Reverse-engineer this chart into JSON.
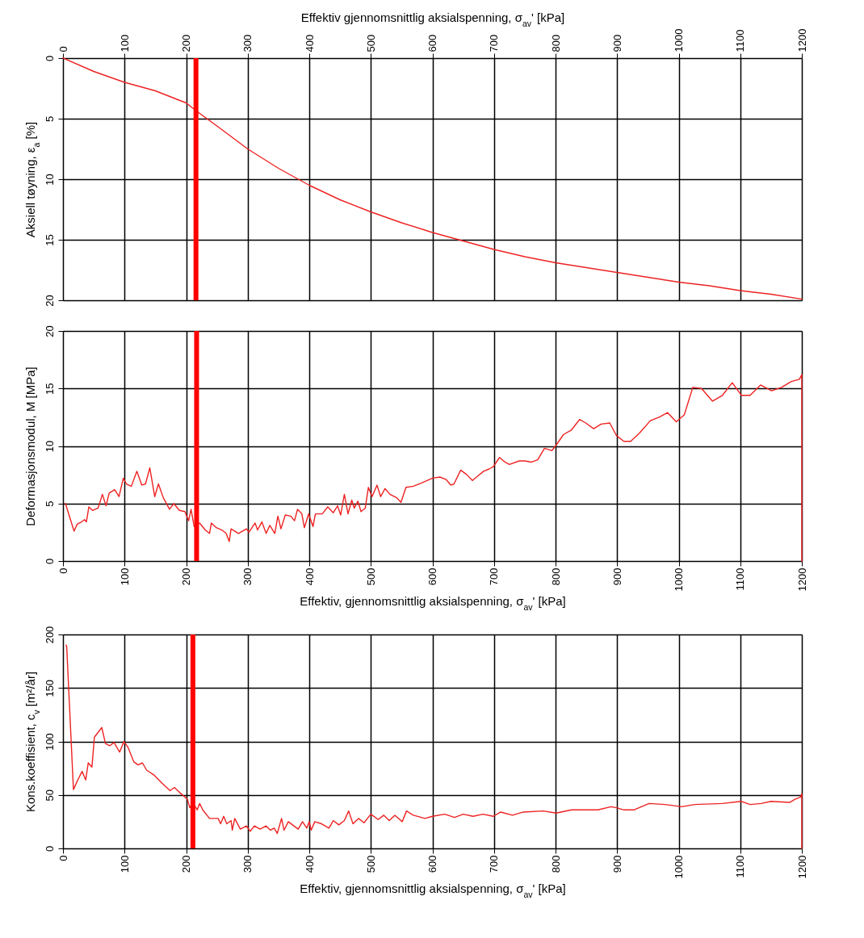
{
  "chart_data": [
    {
      "type": "line",
      "xlabel": "Effektiv gjennomsnittlig aksialspenning, σ$_{av}$'  [kPa]",
      "ylabel": "Aksiell tøyning, ε$_{a}$  [%]",
      "xlim": [
        0,
        1200
      ],
      "xticks": [
        0,
        100,
        200,
        300,
        400,
        500,
        600,
        700,
        800,
        900,
        1000,
        1100,
        1200
      ],
      "ylim": [
        20,
        0
      ],
      "yticks": [
        0,
        5,
        10,
        15,
        20
      ],
      "grid": true,
      "series": [
        {
          "color": "#ee2222",
          "x": [
            0,
            50,
            100,
            150,
            200,
            215,
            250,
            300,
            350,
            400,
            450,
            500,
            550,
            600,
            650,
            700,
            750,
            800,
            850,
            900,
            950,
            1000,
            1050,
            1100,
            1150,
            1200
          ],
          "values": [
            0,
            1.1,
            2.0,
            2.7,
            3.7,
            4.3,
            5.6,
            7.5,
            9.1,
            10.5,
            11.7,
            12.7,
            13.6,
            14.4,
            15.1,
            15.8,
            16.4,
            16.9,
            17.3,
            17.7,
            18.1,
            18.5,
            18.8,
            19.2,
            19.5,
            19.9
          ]
        }
      ],
      "ref_lines": [
        {
          "axis": "x",
          "value": 216,
          "color": "#ff0000"
        }
      ]
    },
    {
      "type": "line",
      "xlabel": "Effektiv, gjennomsnittlig aksialspenning, σ$_{av}$'  [kPa]",
      "ylabel": "Deformasjonsmodul, M [MPa]",
      "xlim": [
        0,
        1200
      ],
      "xticks": [
        0,
        100,
        200,
        300,
        400,
        500,
        600,
        700,
        800,
        900,
        1000,
        1100,
        1200
      ],
      "ylim": [
        0,
        20
      ],
      "yticks": [
        0,
        5,
        10,
        15,
        20
      ],
      "grid": true,
      "x": [
        4,
        18,
        23,
        30,
        35,
        38,
        42,
        48,
        57,
        64,
        70,
        75,
        84,
        91,
        98,
        103,
        111,
        120,
        128,
        134,
        141,
        149,
        155,
        163,
        173,
        180,
        189,
        198,
        204,
        208,
        213,
        222,
        231,
        238,
        241,
        249,
        258,
        265,
        270,
        273,
        285,
        298,
        302,
        312,
        316,
        323,
        330,
        336,
        344,
        349,
        354,
        361,
        370,
        376,
        381,
        388,
        392,
        399,
        406,
        410,
        421,
        430,
        439,
        446,
        451,
        457,
        463,
        469,
        473,
        479,
        484,
        491,
        496,
        502,
        510,
        516,
        523,
        531,
        542,
        549,
        557,
        569,
        583,
        600,
        612,
        622,
        630,
        635,
        646,
        656,
        665,
        674,
        683,
        692,
        699,
        709,
        718,
        725,
        741,
        750,
        761,
        771,
        782,
        794,
        800,
        813,
        826,
        839,
        849,
        862,
        874,
        888,
        899,
        911,
        922,
        936,
        954,
        968,
        982,
        996,
        1009,
        1023,
        1037,
        1055,
        1071,
        1087,
        1102,
        1116,
        1133,
        1151,
        1167,
        1183,
        1196,
        1200,
        1200
      ],
      "series": [
        {
          "color": "#ee2222",
          "values": [
            5.0,
            2.6,
            3.2,
            3.4,
            3.6,
            3.4,
            4.7,
            4.4,
            4.6,
            5.8,
            4.8,
            5.9,
            6.2,
            5.6,
            7.2,
            6.7,
            6.5,
            7.8,
            6.6,
            6.7,
            8.1,
            5.6,
            6.7,
            5.5,
            4.5,
            5.0,
            4.4,
            4.3,
            3.5,
            4.5,
            3.0,
            3.3,
            2.7,
            2.4,
            3.3,
            2.9,
            2.7,
            2.4,
            1.7,
            2.8,
            2.4,
            2.8,
            2.5,
            3.3,
            2.7,
            3.4,
            2.4,
            3.1,
            2.4,
            3.9,
            2.8,
            4.0,
            3.9,
            3.5,
            4.5,
            4.1,
            2.9,
            4.1,
            3.0,
            4.1,
            4.1,
            4.7,
            4.2,
            4.8,
            4.0,
            5.8,
            4.1,
            5.3,
            4.6,
            5.2,
            4.3,
            4.6,
            6.4,
            5.6,
            6.6,
            5.6,
            6.3,
            5.8,
            5.5,
            5.1,
            6.4,
            6.5,
            6.8,
            7.2,
            7.3,
            7.1,
            6.6,
            6.7,
            7.9,
            7.5,
            7.0,
            7.4,
            7.8,
            8.0,
            8.2,
            9.0,
            8.6,
            8.4,
            8.7,
            8.7,
            8.6,
            8.8,
            9.8,
            9.6,
            10.0,
            11.0,
            11.4,
            12.3,
            12.0,
            11.5,
            11.9,
            12.0,
            10.9,
            10.4,
            10.4,
            11.1,
            12.2,
            12.5,
            12.9,
            12.1,
            12.7,
            15.1,
            15.0,
            13.9,
            14.4,
            15.5,
            14.4,
            14.4,
            15.3,
            14.8,
            15.1,
            15.6,
            15.8,
            16.2,
            0
          ]
        }
      ],
      "ref_lines": [
        {
          "axis": "x",
          "value": 217,
          "color": "#ff0000"
        }
      ]
    },
    {
      "type": "line",
      "xlabel": "Effektiv, gjennomsnittlig aksialspenning, σ$_{av}$'  [kPa]",
      "ylabel": "Kons.koeffisient, c$_{v}$ [m²/år]",
      "xlim": [
        0,
        1200
      ],
      "xticks": [
        0,
        100,
        200,
        300,
        400,
        500,
        600,
        700,
        800,
        900,
        1000,
        1100,
        1200
      ],
      "ylim": [
        0,
        200
      ],
      "yticks": [
        0,
        50,
        100,
        150,
        200
      ],
      "grid": true,
      "x": [
        5,
        6,
        17,
        24,
        31,
        37,
        41,
        47,
        51,
        63,
        69,
        76,
        83,
        92,
        99,
        106,
        115,
        122,
        129,
        136,
        147,
        161,
        174,
        181,
        190,
        202,
        206,
        211,
        218,
        222,
        227,
        238,
        252,
        256,
        261,
        266,
        273,
        275,
        279,
        288,
        298,
        304,
        311,
        320,
        330,
        337,
        343,
        348,
        355,
        359,
        366,
        375,
        382,
        389,
        396,
        400,
        403,
        409,
        420,
        432,
        439,
        448,
        457,
        464,
        471,
        480,
        489,
        500,
        512,
        521,
        530,
        539,
        551,
        558,
        569,
        588,
        600,
        620,
        636,
        650,
        666,
        682,
        699,
        711,
        730,
        748,
        780,
        801,
        826,
        849,
        869,
        890,
        899,
        911,
        927,
        952,
        978,
        1005,
        1026,
        1071,
        1101,
        1116,
        1134,
        1150,
        1180,
        1189,
        1198,
        1200,
        1200
      ],
      "series": [
        {
          "color": "#ee2222",
          "values": [
            190,
            189,
            55,
            64,
            72,
            64,
            80,
            76,
            104,
            113,
            98,
            96,
            99,
            90,
            100,
            94,
            81,
            78,
            80,
            73,
            69,
            61,
            54,
            57,
            52,
            46,
            38,
            43,
            36,
            42,
            36,
            28,
            28,
            23,
            30,
            23,
            26,
            17,
            28,
            18,
            21,
            16,
            21,
            18,
            21,
            17,
            19,
            14,
            28,
            17,
            25,
            21,
            18,
            25,
            19,
            25,
            17,
            25,
            23,
            19,
            26,
            22,
            26,
            35,
            23,
            28,
            24,
            32,
            27,
            31,
            26,
            31,
            25,
            35,
            31,
            28,
            30,
            32,
            29,
            32,
            30,
            32,
            30,
            34,
            31,
            34,
            35,
            33,
            36,
            36,
            36,
            39,
            38,
            36,
            36,
            42,
            41,
            39,
            41,
            42,
            44,
            41,
            42,
            44,
            43,
            46,
            48,
            51,
            0
          ]
        }
      ],
      "ref_lines": [
        {
          "axis": "x",
          "value": 211,
          "color": "#ff0000"
        }
      ]
    }
  ]
}
